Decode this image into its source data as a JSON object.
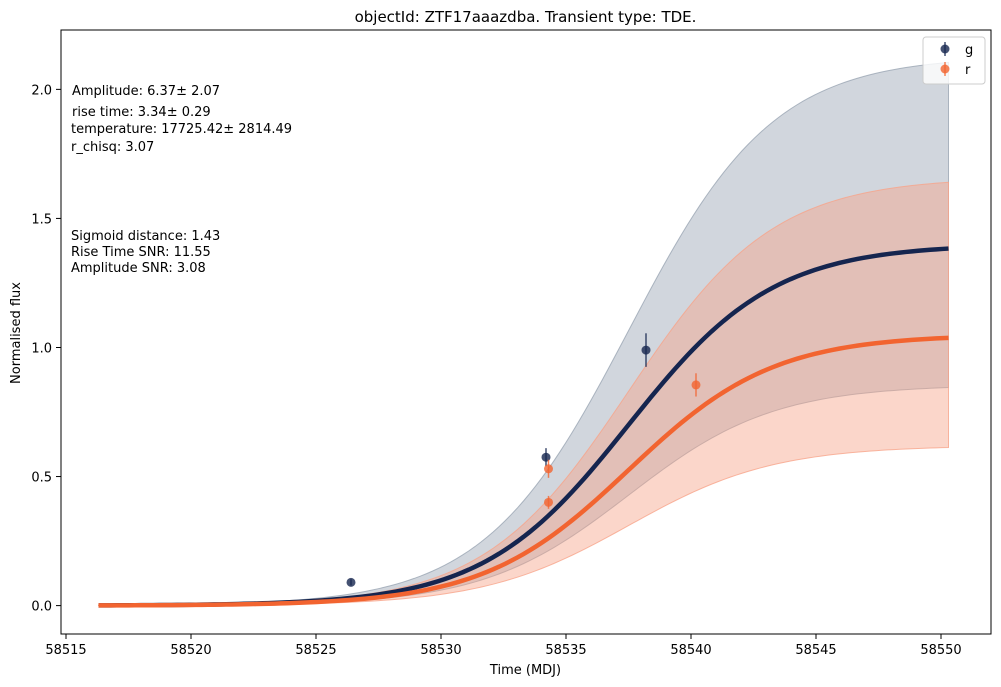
{
  "chart_data": {
    "type": "line",
    "title": "objectId: ZTF17aaazdba. Transient type: TDE.",
    "xlabel": "Time (MDJ)",
    "ylabel": "Normalised flux",
    "xlim": [
      58514.8,
      58552.0
    ],
    "ylim": [
      -0.11,
      2.23
    ],
    "x_ticks": [
      58515,
      58520,
      58525,
      58530,
      58535,
      58540,
      58545,
      58550
    ],
    "y_ticks": [
      0.0,
      0.5,
      1.0,
      1.5,
      2.0
    ],
    "y_tick_labels": [
      "0.0",
      "0.5",
      "1.0",
      "1.5",
      "2.0"
    ],
    "legend_position": "top-right",
    "fit_params": {
      "t_rise_mid": 58537.5,
      "tau": 2.9,
      "x_start": 58516.3,
      "x_end": 58550.3
    },
    "series": [
      {
        "name": "g",
        "color": "#15254f",
        "band_color": "#9aa5b3",
        "model_amplitude": 1.4,
        "band_upper_amplitude": 2.13,
        "band_lower_amplitude": 0.855,
        "points": [
          {
            "x": 58526.4,
            "y": 0.09,
            "err": 0.012
          },
          {
            "x": 58534.2,
            "y": 0.575,
            "err": 0.035
          },
          {
            "x": 58538.2,
            "y": 0.99,
            "err": 0.065
          }
        ]
      },
      {
        "name": "r",
        "color": "#f26430",
        "band_color": "#f7a48a",
        "model_amplitude": 1.05,
        "band_upper_amplitude": 1.66,
        "band_lower_amplitude": 0.62,
        "points": [
          {
            "x": 58534.3,
            "y": 0.53,
            "err": 0.035
          },
          {
            "x": 58534.3,
            "y": 0.4,
            "err": 0.025
          },
          {
            "x": 58540.2,
            "y": 0.855,
            "err": 0.045
          }
        ]
      }
    ],
    "annotations": {
      "fit_block": [
        "Amplitude: 6.37± 2.07",
        "rise time: 3.34± 0.29",
        "temperature: 17725.42± 2814.49",
        "r_chisq: 3.07"
      ],
      "stats_block": [
        "Sigmoid distance: 1.43",
        "Rise Time SNR: 11.55",
        "Amplitude SNR: 3.08"
      ]
    }
  }
}
